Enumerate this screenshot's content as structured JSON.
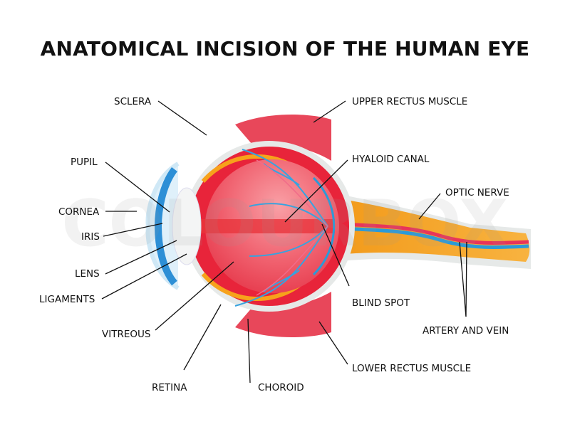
{
  "title": "ANATOMICAL INCISION OF THE HUMAN EYE",
  "labels": {
    "sclera": "SCLERA",
    "pupil": "PUPIL",
    "cornea": "CORNEA",
    "iris": "IRIS",
    "lens": "LENS",
    "ligaments": "LIGAMENTS",
    "vitreous": "VITREOUS",
    "retina": "RETINA",
    "choroid": "CHOROID",
    "upper_rectus": "UPPER RECTUS MUSCLE",
    "hyaloid": "HYALOID CANAL",
    "optic_nerve": "OPTIC NERVE",
    "blind_spot": "BLIND SPOT",
    "artery_vein": "ARTERY AND VEIN",
    "lower_rectus": "LOWER RECTUS MUSCLE"
  },
  "watermark": "COLOURBOX",
  "colors": {
    "sclera": "#e6e9e8",
    "red": "#e8243a",
    "choroid": "#f7a21b",
    "vitreous": "#f0566a",
    "cornea": "#2d8fd6",
    "nerve": "#f6a623",
    "vein": "#2b9ad8"
  }
}
